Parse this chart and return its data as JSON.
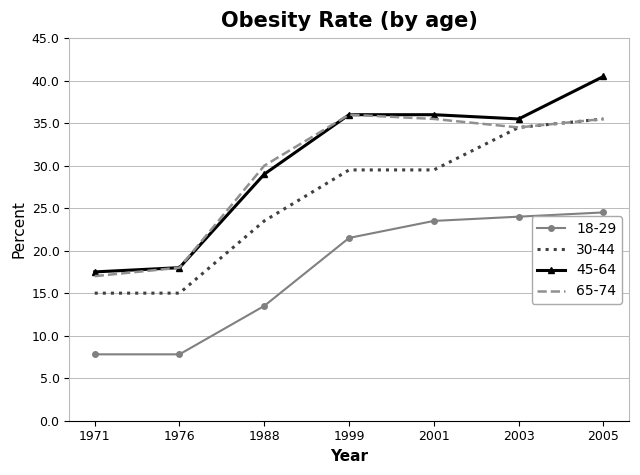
{
  "title": "Obesity Rate (by age)",
  "xlabel": "Year",
  "ylabel": "Percent",
  "years": [
    1971,
    1976,
    1988,
    1999,
    2001,
    2003,
    2005
  ],
  "year_labels": [
    "1971",
    "1976",
    "1988",
    "1999",
    "2001",
    "2003",
    "2005"
  ],
  "series": {
    "18-29": {
      "values": [
        7.8,
        7.8,
        13.5,
        21.5,
        23.5,
        24.0,
        24.5
      ],
      "color": "#808080",
      "linestyle": "-",
      "marker": "o",
      "linewidth": 1.5,
      "markersize": 4
    },
    "30-44": {
      "values": [
        15.0,
        15.0,
        23.5,
        29.5,
        29.5,
        34.5,
        35.5
      ],
      "color": "#404040",
      "linestyle": ":",
      "marker": null,
      "linewidth": 2.2,
      "markersize": 0
    },
    "45-64": {
      "values": [
        17.5,
        18.0,
        29.0,
        36.0,
        36.0,
        35.5,
        40.5
      ],
      "color": "#000000",
      "linestyle": "-",
      "marker": "^",
      "linewidth": 2.2,
      "markersize": 5
    },
    "65-74": {
      "values": [
        17.0,
        18.0,
        30.0,
        36.0,
        35.5,
        34.5,
        35.5
      ],
      "color": "#909090",
      "linestyle": "--",
      "marker": null,
      "linewidth": 1.8,
      "markersize": 0
    }
  },
  "ylim": [
    0.0,
    45.0
  ],
  "yticks": [
    0.0,
    5.0,
    10.0,
    15.0,
    20.0,
    25.0,
    30.0,
    35.0,
    40.0,
    45.0
  ],
  "background_color": "#ffffff",
  "grid_color": "#bbbbbb",
  "title_fontsize": 15,
  "axis_label_fontsize": 11,
  "tick_fontsize": 9,
  "legend_fontsize": 10
}
